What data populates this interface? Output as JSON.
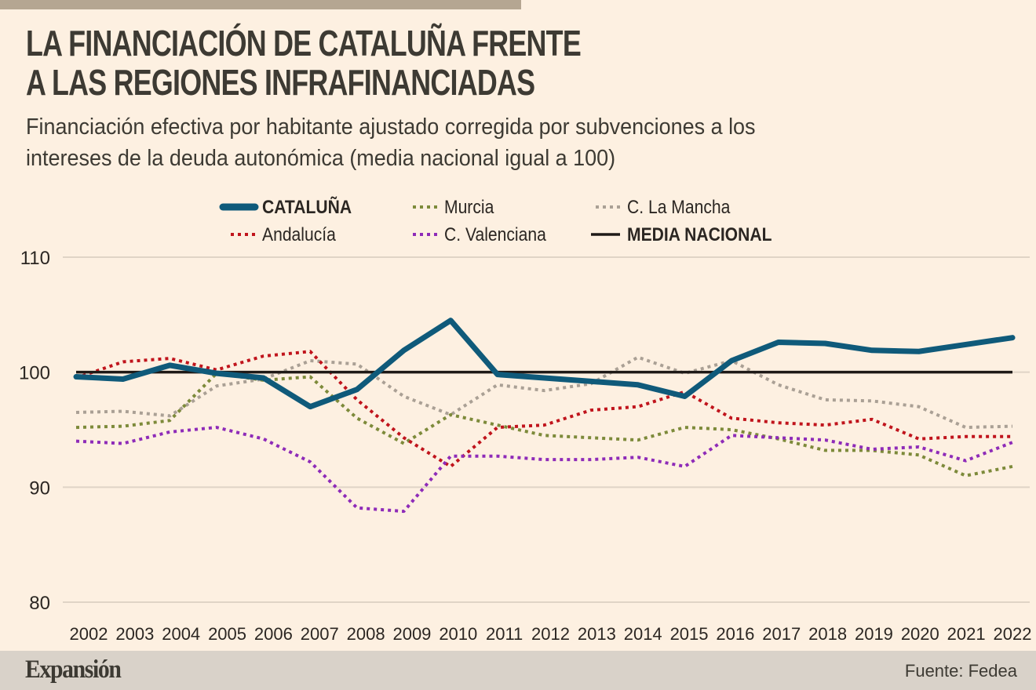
{
  "header": {
    "title_line1": "LA FINANCIACIÓN DE CATALUÑA FRENTE",
    "title_line2": "A LAS REGIONES INFRAFINANCIADAS",
    "subtitle_line1": "Financiación efectiva por habitante ajustado corregida por subvenciones a los",
    "subtitle_line2": "intereses de la deuda autonómica (media nacional igual a 100)"
  },
  "footer": {
    "brand": "Expansión",
    "source": "Fuente: Fedea"
  },
  "chart_data": {
    "type": "line",
    "title": "LA FINANCIACIÓN DE CATALUÑA FRENTE A LAS REGIONES INFRAFINANCIADAS",
    "subtitle": "Financiación efectiva por habitante ajustado corregida por subvenciones a los intereses de la deuda autonómica (media nacional igual a 100)",
    "xlabel": "",
    "ylabel": "",
    "x": [
      "2002",
      "2003",
      "2004",
      "2005",
      "2006",
      "2007",
      "2008",
      "2009",
      "2010",
      "2011",
      "2012",
      "2013",
      "2014",
      "2015",
      "2016",
      "2017",
      "2018",
      "2019",
      "2020",
      "2021",
      "2022"
    ],
    "ylim": [
      80,
      110
    ],
    "yticks": [
      80,
      90,
      100,
      110
    ],
    "grid": true,
    "legend_position": "top",
    "series": [
      {
        "name": "CATALUÑA",
        "color": "#0f5a7a",
        "style": "solid-thick",
        "bold": true,
        "values": [
          99.6,
          99.4,
          100.6,
          99.9,
          99.5,
          97.0,
          98.5,
          101.9,
          104.5,
          99.8,
          99.5,
          99.2,
          98.9,
          97.9,
          101.0,
          102.6,
          102.5,
          101.9,
          101.8,
          102.4,
          103.0
        ]
      },
      {
        "name": "Andalucía",
        "color": "#c0141c",
        "style": "dotted",
        "values": [
          99.5,
          100.9,
          101.2,
          100.2,
          101.4,
          101.8,
          97.6,
          94.3,
          91.8,
          95.2,
          95.4,
          96.7,
          97.0,
          98.3,
          96.0,
          95.6,
          95.4,
          95.9,
          94.2,
          94.4,
          94.4
        ]
      },
      {
        "name": "Murcia",
        "color": "#7d8a3a",
        "style": "dotted",
        "values": [
          95.2,
          95.3,
          95.8,
          99.9,
          99.3,
          99.6,
          96.0,
          93.8,
          96.3,
          95.4,
          94.5,
          94.3,
          94.1,
          95.2,
          95.0,
          94.2,
          93.2,
          93.2,
          92.8,
          91.0,
          91.8
        ]
      },
      {
        "name": "C. Valenciana",
        "color": "#8e2bb8",
        "style": "dotted",
        "values": [
          94.0,
          93.8,
          94.8,
          95.2,
          94.2,
          92.2,
          88.2,
          87.9,
          92.7,
          92.7,
          92.4,
          92.4,
          92.6,
          91.8,
          94.5,
          94.3,
          94.1,
          93.3,
          93.5,
          92.3,
          93.9
        ]
      },
      {
        "name": "C. La Mancha",
        "color": "#aaa095",
        "style": "dotted",
        "values": [
          96.5,
          96.6,
          96.2,
          98.8,
          99.4,
          101.0,
          100.7,
          97.9,
          96.3,
          98.9,
          98.4,
          99.0,
          101.3,
          99.9,
          101.0,
          98.9,
          97.6,
          97.5,
          97.0,
          95.2,
          95.3
        ]
      },
      {
        "name": "MEDIA NACIONAL",
        "color": "#1f1a17",
        "style": "solid",
        "bold": true,
        "values": [
          100,
          100,
          100,
          100,
          100,
          100,
          100,
          100,
          100,
          100,
          100,
          100,
          100,
          100,
          100,
          100,
          100,
          100,
          100,
          100,
          100
        ]
      }
    ]
  }
}
